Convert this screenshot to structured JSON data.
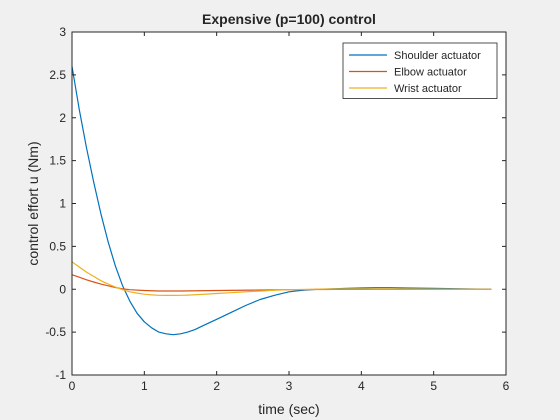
{
  "chart_data": {
    "type": "line",
    "title": "Expensive (p=100) control",
    "xlabel": "time (sec)",
    "ylabel": "control effort u (Nm)",
    "xlim": [
      0,
      6
    ],
    "ylim": [
      -1,
      3
    ],
    "xticks": [
      0,
      1,
      2,
      3,
      4,
      5,
      6
    ],
    "yticks": [
      -1,
      -0.5,
      0,
      0.5,
      1,
      1.5,
      2,
      2.5,
      3
    ],
    "xtick_labels": [
      "0",
      "1",
      "2",
      "3",
      "4",
      "5",
      "6"
    ],
    "ytick_labels": [
      "-1",
      "-0.5",
      "0",
      "0.5",
      "1",
      "1.5",
      "2",
      "2.5",
      "3"
    ],
    "grid": false,
    "legend_position": "top-right",
    "series": [
      {
        "name": "Shoulder actuator",
        "color": "#0072BD",
        "x": [
          0,
          0.1,
          0.2,
          0.3,
          0.4,
          0.5,
          0.6,
          0.7,
          0.8,
          0.9,
          1.0,
          1.1,
          1.2,
          1.3,
          1.4,
          1.5,
          1.6,
          1.7,
          1.8,
          2.0,
          2.2,
          2.4,
          2.6,
          2.8,
          3.0,
          3.2,
          3.4,
          3.6,
          3.8,
          4.0,
          4.2,
          4.4,
          4.6,
          5.0,
          5.4,
          5.8
        ],
        "y": [
          2.6,
          2.1,
          1.65,
          1.25,
          0.88,
          0.55,
          0.27,
          0.04,
          -0.14,
          -0.28,
          -0.38,
          -0.45,
          -0.5,
          -0.52,
          -0.53,
          -0.52,
          -0.5,
          -0.47,
          -0.43,
          -0.35,
          -0.27,
          -0.19,
          -0.12,
          -0.07,
          -0.03,
          -0.01,
          0.0,
          0.005,
          0.01,
          0.015,
          0.018,
          0.018,
          0.015,
          0.01,
          0.005,
          0.0
        ]
      },
      {
        "name": "Elbow actuator",
        "color": "#D95319",
        "x": [
          0,
          0.1,
          0.2,
          0.3,
          0.4,
          0.5,
          0.6,
          0.7,
          0.8,
          1.0,
          1.2,
          1.5,
          2.0,
          2.5,
          3.0,
          4.0,
          5.0,
          5.8
        ],
        "y": [
          0.17,
          0.14,
          0.11,
          0.085,
          0.06,
          0.04,
          0.02,
          0.005,
          -0.005,
          -0.015,
          -0.02,
          -0.02,
          -0.015,
          -0.01,
          -0.005,
          0.0,
          0.0,
          0.0
        ]
      },
      {
        "name": "Wrist actuator",
        "color": "#EDB120",
        "x": [
          0,
          0.1,
          0.2,
          0.3,
          0.4,
          0.5,
          0.6,
          0.7,
          0.8,
          0.9,
          1.0,
          1.1,
          1.2,
          1.3,
          1.4,
          1.5,
          1.6,
          1.8,
          2.0,
          2.2,
          2.5,
          2.8,
          3.0,
          3.5,
          4.0,
          4.5,
          5.0,
          5.8
        ],
        "y": [
          0.32,
          0.26,
          0.2,
          0.15,
          0.1,
          0.06,
          0.025,
          -0.005,
          -0.03,
          -0.045,
          -0.058,
          -0.066,
          -0.07,
          -0.072,
          -0.072,
          -0.071,
          -0.068,
          -0.06,
          -0.05,
          -0.04,
          -0.025,
          -0.012,
          -0.005,
          0.003,
          0.005,
          0.004,
          0.002,
          0.0
        ]
      }
    ]
  }
}
